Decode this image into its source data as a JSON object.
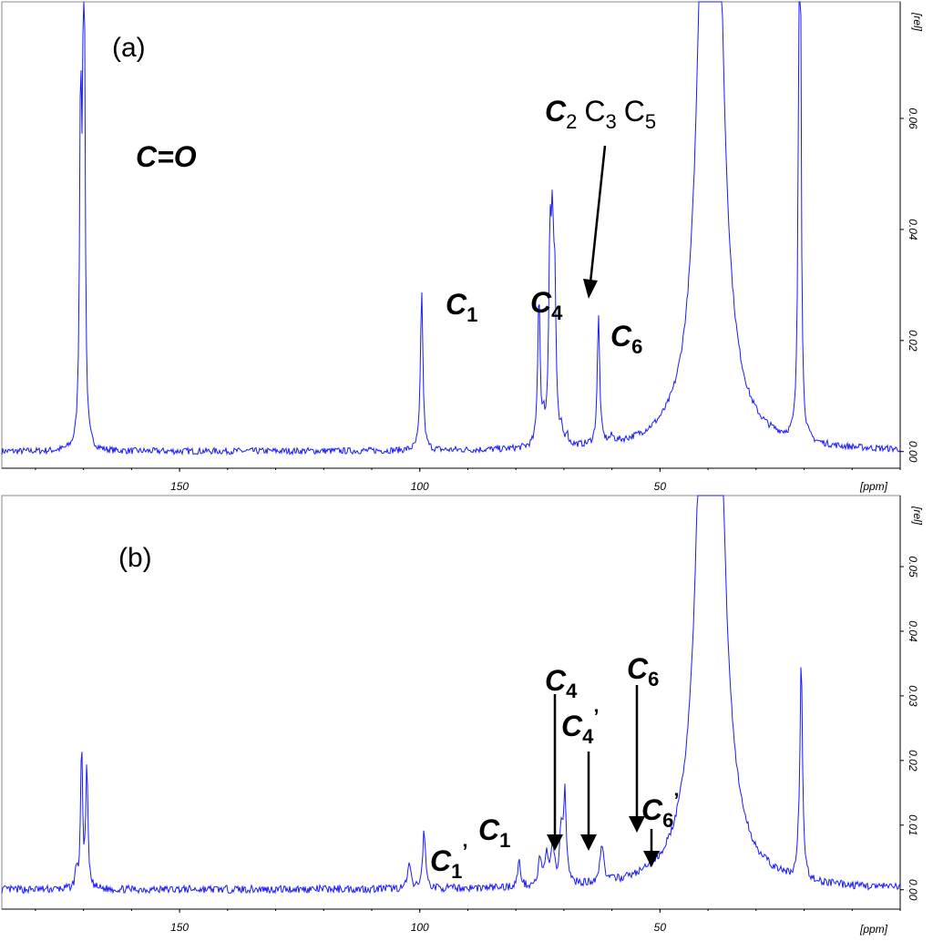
{
  "chart_data": [
    {
      "type": "line",
      "panel": "(a)",
      "xlabel": "[ppm]",
      "ylabel": "[rel]",
      "x_reversed": true,
      "xlim": [
        187,
        0
      ],
      "ylim": [
        -0.003,
        0.081
      ],
      "xticks": [
        150,
        100,
        50
      ],
      "yticks": [
        0.0,
        0.02,
        0.04,
        0.06
      ],
      "ytick_labels": [
        "0.00",
        "0.02",
        "0.04",
        "0.06"
      ],
      "peaks": [
        {
          "ppm": 170.6,
          "height": 0.062,
          "width": 0.25
        },
        {
          "ppm": 170.0,
          "height": 0.061,
          "width": 0.25
        },
        {
          "ppm": 169.8,
          "height": 0.046,
          "width": 0.2
        },
        {
          "ppm": 99.6,
          "height": 0.029,
          "width": 0.3
        },
        {
          "ppm": 75.2,
          "height": 0.027,
          "width": 0.3
        },
        {
          "ppm": 74.2,
          "height": 0.003,
          "width": 0.3
        },
        {
          "ppm": 72.9,
          "height": 0.033,
          "width": 0.3
        },
        {
          "ppm": 72.4,
          "height": 0.031,
          "width": 0.3
        },
        {
          "ppm": 71.9,
          "height": 0.025,
          "width": 0.3
        },
        {
          "ppm": 70.5,
          "height": 0.002,
          "width": 0.3
        },
        {
          "ppm": 69.4,
          "height": 0.002,
          "width": 0.3
        },
        {
          "ppm": 62.8,
          "height": 0.023,
          "width": 0.3
        },
        {
          "ppm": 60.0,
          "height": 0.001,
          "width": 0.5
        },
        {
          "ppm": 39.5,
          "height": 0.25,
          "width": 1.7
        },
        {
          "ppm": 21.0,
          "height": 0.078,
          "width": 0.25
        },
        {
          "ppm": 20.8,
          "height": 0.068,
          "width": 0.2
        }
      ],
      "labels": [
        "C=O",
        "C1",
        "C4",
        "C2 C3 C5",
        "C6"
      ]
    },
    {
      "type": "line",
      "panel": "(b)",
      "xlabel": "[ppm]",
      "ylabel": "[rel]",
      "x_reversed": true,
      "xlim": [
        187,
        0
      ],
      "ylim": [
        -0.003,
        0.061
      ],
      "xticks": [
        150,
        100,
        50
      ],
      "yticks": [
        0.0,
        0.01,
        0.02,
        0.03,
        0.04,
        0.05
      ],
      "ytick_labels": [
        "0.00",
        "0.01",
        "0.02",
        "0.03",
        "0.04",
        "0.05"
      ],
      "peaks": [
        {
          "ppm": 171.5,
          "height": 0.003,
          "width": 0.25
        },
        {
          "ppm": 170.4,
          "height": 0.022,
          "width": 0.25
        },
        {
          "ppm": 169.3,
          "height": 0.019,
          "width": 0.25
        },
        {
          "ppm": 102.2,
          "height": 0.004,
          "width": 0.35
        },
        {
          "ppm": 99.1,
          "height": 0.009,
          "width": 0.35
        },
        {
          "ppm": 79.3,
          "height": 0.004,
          "width": 0.35
        },
        {
          "ppm": 75.0,
          "height": 0.004,
          "width": 0.4
        },
        {
          "ppm": 73.6,
          "height": 0.005,
          "width": 0.4
        },
        {
          "ppm": 72.3,
          "height": 0.006,
          "width": 0.4
        },
        {
          "ppm": 70.6,
          "height": 0.008,
          "width": 0.35
        },
        {
          "ppm": 69.8,
          "height": 0.014,
          "width": 0.35
        },
        {
          "ppm": 62.1,
          "height": 0.006,
          "width": 0.45
        },
        {
          "ppm": 39.5,
          "height": 0.22,
          "width": 1.7
        },
        {
          "ppm": 20.6,
          "height": 0.034,
          "width": 0.3
        },
        {
          "ppm": 21.2,
          "height": 0.003,
          "width": 0.2
        }
      ],
      "labels": [
        "C1",
        "C1",
        "C4",
        "C4",
        "C6",
        "C6"
      ]
    }
  ],
  "annotations": {
    "a": {
      "panel_tag": "(a)",
      "co": "C=O",
      "c1": {
        "main": "C",
        "sub": "1"
      },
      "c4": {
        "main": "C",
        "sub": "4"
      },
      "c6": {
        "main": "C",
        "sub": "6"
      },
      "c235": {
        "c2": "C",
        "c2sub": "2",
        "c3": "C",
        "c3sub": "3",
        "c5": "C",
        "c5sub": "5"
      }
    },
    "b": {
      "panel_tag": "(b)",
      "c1p": {
        "main": "C",
        "sub": "1",
        "prime": "’"
      },
      "c1": {
        "main": "C",
        "sub": "1"
      },
      "c4": {
        "main": "C",
        "sub": "4"
      },
      "c4p": {
        "main": "C",
        "sub": "4",
        "prime": "’"
      },
      "c6": {
        "main": "C",
        "sub": "6"
      },
      "c6p": {
        "main": "C",
        "sub": "6",
        "prime": "’"
      }
    }
  },
  "colors": {
    "trace": "#1a1aff",
    "axis": "#000000",
    "frame": "#888888"
  }
}
